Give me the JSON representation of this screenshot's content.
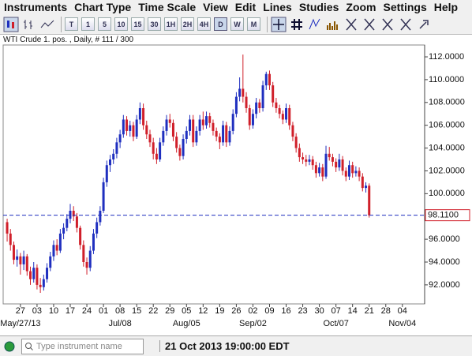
{
  "menu": [
    "Instruments",
    "Chart Type",
    "Time Scale",
    "View",
    "Edit",
    "Lines",
    "Studies",
    "Zoom",
    "Settings",
    "Help"
  ],
  "toolbar": [
    "T",
    "1",
    "5",
    "10",
    "15",
    "30",
    "1H",
    "2H",
    "4H",
    "D",
    "W",
    "M"
  ],
  "status": {
    "search_placeholder": "Type instrument name",
    "datetime": "21 Oct 2013 19:00:00 EDT"
  },
  "chart_data": {
    "type": "candlestick",
    "title": "WTI Crude 1. pos. , Daily, # 111 / 300",
    "up_color": "#1f2fbf",
    "down_color": "#d01f2a",
    "xlim": [
      -1.2,
      125.7
    ],
    "ylim": [
      90.33,
      113.04
    ],
    "yticks": [
      {
        "value": 92,
        "label": "92.0000"
      },
      {
        "value": 94,
        "label": "94.0000"
      },
      {
        "value": 96,
        "label": "96.0000"
      },
      {
        "value": 98,
        "label": "98.0000"
      },
      {
        "value": 100,
        "label": "100.0000"
      },
      {
        "value": 102,
        "label": "102.0000"
      },
      {
        "value": 104,
        "label": "104.0000"
      },
      {
        "value": 106,
        "label": "106.0000"
      },
      {
        "value": 108,
        "label": "108.0000"
      },
      {
        "value": 110,
        "label": "110.0000"
      },
      {
        "value": 112,
        "label": "112.0000"
      }
    ],
    "xticks": [
      {
        "value": 4,
        "label": "27"
      },
      {
        "value": 9,
        "label": "03"
      },
      {
        "value": 14,
        "label": "10"
      },
      {
        "value": 19,
        "label": "17"
      },
      {
        "value": 24,
        "label": "24"
      },
      {
        "value": 29,
        "label": "01"
      },
      {
        "value": 34,
        "label": "08"
      },
      {
        "value": 39,
        "label": "15"
      },
      {
        "value": 44,
        "label": "22"
      },
      {
        "value": 49,
        "label": "29"
      },
      {
        "value": 54,
        "label": "05"
      },
      {
        "value": 59,
        "label": "12"
      },
      {
        "value": 64,
        "label": "19"
      },
      {
        "value": 69,
        "label": "26"
      },
      {
        "value": 74,
        "label": "02"
      },
      {
        "value": 79,
        "label": "09"
      },
      {
        "value": 84,
        "label": "16"
      },
      {
        "value": 89,
        "label": "23"
      },
      {
        "value": 94,
        "label": "30"
      },
      {
        "value": 99,
        "label": "07"
      },
      {
        "value": 104,
        "label": "14"
      },
      {
        "value": 109,
        "label": "21"
      },
      {
        "value": 114,
        "label": "28"
      },
      {
        "value": 119,
        "label": "04"
      }
    ],
    "xticks2": [
      {
        "value": 4,
        "label": "May/27/13"
      },
      {
        "value": 34,
        "label": "Jul/08"
      },
      {
        "value": 54,
        "label": "Aug/05"
      },
      {
        "value": 74,
        "label": "Sep/02"
      },
      {
        "value": 99,
        "label": "Oct/07"
      },
      {
        "value": 119,
        "label": "Nov/04"
      }
    ],
    "current_price": {
      "value": 98.11,
      "label": "98.1100"
    },
    "current_color": "#1f2fbf",
    "ohlc": [
      [
        97.5,
        97.8,
        95.8,
        96.5
      ],
      [
        96.5,
        96.9,
        95.0,
        95.5
      ],
      [
        95.5,
        95.8,
        93.8,
        94.2
      ],
      [
        94.2,
        95.1,
        93.6,
        94.5
      ],
      [
        94.5,
        94.8,
        92.9,
        93.8
      ],
      [
        93.8,
        95.0,
        93.3,
        94.5
      ],
      [
        94.5,
        94.7,
        92.8,
        93.2
      ],
      [
        93.2,
        93.6,
        92.0,
        92.5
      ],
      [
        92.5,
        94.0,
        92.2,
        93.5
      ],
      [
        93.5,
        93.8,
        91.6,
        92.0
      ],
      [
        92.0,
        92.6,
        91.3,
        91.8
      ],
      [
        91.8,
        92.9,
        91.5,
        92.5
      ],
      [
        92.5,
        93.9,
        92.2,
        93.5
      ],
      [
        93.5,
        94.9,
        93.2,
        94.5
      ],
      [
        94.5,
        95.9,
        94.1,
        95.5
      ],
      [
        95.5,
        96.0,
        94.6,
        95.0
      ],
      [
        95.0,
        96.9,
        94.8,
        96.5
      ],
      [
        96.5,
        97.4,
        96.0,
        97.0
      ],
      [
        97.0,
        98.2,
        96.7,
        97.8
      ],
      [
        97.8,
        99.1,
        97.4,
        98.5
      ],
      [
        98.5,
        98.9,
        97.6,
        98.0
      ],
      [
        98.0,
        98.3,
        96.6,
        97.0
      ],
      [
        97.0,
        97.2,
        95.1,
        95.5
      ],
      [
        95.5,
        95.9,
        93.6,
        94.0
      ],
      [
        94.0,
        94.4,
        92.9,
        93.5
      ],
      [
        93.5,
        95.4,
        93.2,
        95.0
      ],
      [
        95.0,
        96.9,
        94.7,
        96.5
      ],
      [
        96.5,
        97.9,
        96.1,
        97.5
      ],
      [
        97.5,
        98.9,
        97.2,
        98.5
      ],
      [
        98.5,
        101.4,
        98.3,
        101.0
      ],
      [
        101.0,
        102.9,
        100.6,
        102.5
      ],
      [
        102.5,
        103.4,
        101.9,
        103.0
      ],
      [
        103.0,
        103.9,
        102.6,
        103.5
      ],
      [
        103.5,
        104.9,
        103.1,
        104.5
      ],
      [
        104.5,
        105.6,
        104.0,
        105.2
      ],
      [
        105.2,
        106.9,
        104.9,
        106.5
      ],
      [
        106.5,
        106.8,
        105.1,
        105.5
      ],
      [
        105.5,
        106.4,
        105.0,
        106.0
      ],
      [
        106.0,
        106.3,
        104.6,
        105.0
      ],
      [
        105.0,
        106.9,
        104.8,
        106.5
      ],
      [
        106.5,
        108.0,
        106.1,
        107.5
      ],
      [
        107.5,
        107.9,
        105.6,
        106.0
      ],
      [
        106.0,
        106.4,
        104.8,
        105.2
      ],
      [
        105.2,
        105.6,
        104.1,
        104.5
      ],
      [
        104.5,
        104.9,
        103.0,
        103.5
      ],
      [
        103.5,
        104.0,
        102.6,
        103.0
      ],
      [
        103.0,
        104.9,
        102.8,
        104.5
      ],
      [
        104.5,
        105.9,
        104.2,
        105.5
      ],
      [
        105.5,
        106.9,
        105.1,
        106.5
      ],
      [
        106.5,
        107.0,
        105.8,
        106.2
      ],
      [
        106.2,
        106.5,
        104.6,
        105.0
      ],
      [
        105.0,
        105.4,
        103.6,
        104.0
      ],
      [
        104.0,
        104.3,
        102.9,
        103.3
      ],
      [
        103.3,
        105.2,
        103.0,
        104.8
      ],
      [
        104.8,
        105.9,
        104.4,
        105.5
      ],
      [
        105.5,
        106.9,
        105.1,
        106.5
      ],
      [
        106.5,
        106.9,
        104.1,
        104.5
      ],
      [
        104.5,
        105.9,
        104.2,
        105.5
      ],
      [
        105.5,
        106.9,
        105.1,
        106.5
      ],
      [
        106.5,
        107.2,
        105.6,
        106.0
      ],
      [
        106.0,
        107.2,
        105.7,
        106.8
      ],
      [
        106.8,
        107.1,
        105.8,
        106.2
      ],
      [
        106.2,
        106.5,
        105.1,
        105.5
      ],
      [
        105.5,
        105.8,
        104.6,
        105.0
      ],
      [
        105.0,
        105.3,
        103.9,
        104.5
      ],
      [
        104.5,
        106.4,
        104.2,
        106.0
      ],
      [
        106.0,
        106.3,
        104.1,
        104.5
      ],
      [
        104.5,
        105.9,
        104.2,
        105.5
      ],
      [
        105.5,
        107.4,
        105.2,
        107.0
      ],
      [
        107.0,
        108.9,
        106.7,
        108.5
      ],
      [
        108.5,
        110.2,
        108.1,
        109.2
      ],
      [
        109.2,
        112.2,
        108.0,
        108.5
      ],
      [
        108.5,
        108.9,
        107.1,
        107.5
      ],
      [
        107.5,
        107.8,
        105.6,
        106.0
      ],
      [
        106.0,
        107.4,
        105.7,
        107.0
      ],
      [
        107.0,
        108.4,
        106.6,
        108.0
      ],
      [
        108.0,
        108.3,
        107.1,
        107.5
      ],
      [
        107.5,
        109.9,
        107.2,
        109.5
      ],
      [
        109.5,
        110.7,
        109.1,
        110.5
      ],
      [
        110.5,
        110.8,
        109.1,
        109.5
      ],
      [
        109.5,
        109.8,
        107.6,
        108.0
      ],
      [
        108.0,
        108.4,
        107.1,
        107.5
      ],
      [
        107.5,
        107.8,
        106.6,
        107.0
      ],
      [
        107.0,
        107.3,
        106.1,
        106.5
      ],
      [
        106.5,
        107.9,
        106.2,
        107.5
      ],
      [
        107.5,
        107.8,
        105.6,
        106.0
      ],
      [
        106.0,
        106.3,
        104.6,
        105.0
      ],
      [
        105.0,
        105.3,
        103.6,
        104.0
      ],
      [
        104.0,
        104.4,
        102.8,
        103.2
      ],
      [
        103.2,
        103.6,
        102.6,
        103.0
      ],
      [
        103.0,
        103.4,
        102.4,
        102.8
      ],
      [
        102.8,
        103.4,
        102.5,
        103.0
      ],
      [
        103.0,
        103.3,
        102.1,
        102.5
      ],
      [
        102.5,
        102.8,
        101.4,
        101.8
      ],
      [
        101.8,
        102.7,
        101.5,
        102.3
      ],
      [
        102.3,
        102.6,
        101.1,
        101.5
      ],
      [
        101.5,
        104.2,
        101.3,
        103.5
      ],
      [
        103.5,
        104.1,
        102.9,
        103.2
      ],
      [
        103.2,
        103.5,
        102.4,
        102.8
      ],
      [
        102.8,
        103.1,
        101.9,
        102.3
      ],
      [
        102.3,
        103.5,
        102.0,
        103.0
      ],
      [
        103.0,
        103.3,
        101.6,
        102.0
      ],
      [
        102.0,
        102.3,
        101.1,
        101.5
      ],
      [
        101.5,
        102.9,
        101.2,
        102.5
      ],
      [
        102.5,
        102.8,
        101.4,
        101.8
      ],
      [
        101.8,
        102.4,
        101.5,
        102.0
      ],
      [
        102.0,
        102.3,
        101.1,
        101.5
      ],
      [
        101.5,
        101.8,
        100.2,
        100.5
      ],
      [
        100.5,
        101.0,
        100.1,
        100.7
      ],
      [
        100.7,
        100.9,
        97.9,
        98.1
      ]
    ]
  }
}
